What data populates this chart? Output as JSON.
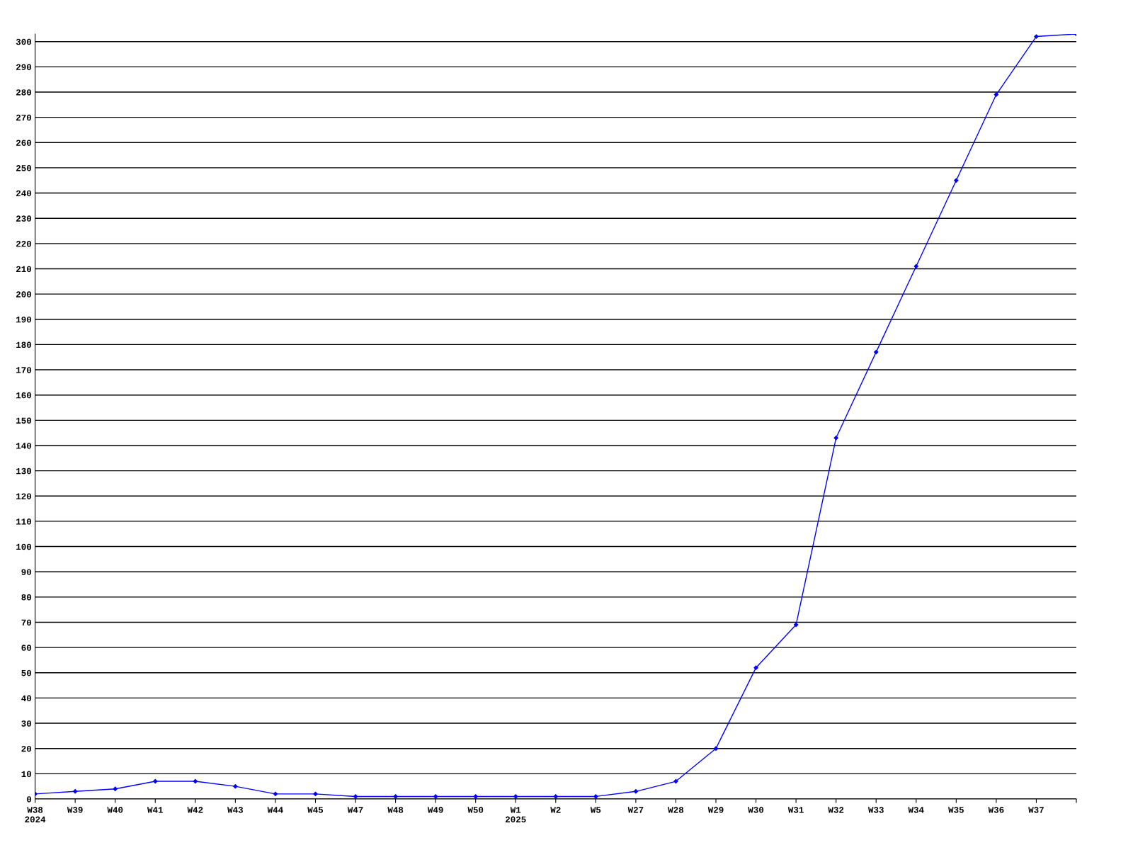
{
  "chart_data": {
    "type": "line",
    "categories": [
      "W38\n2024",
      "W39",
      "W40",
      "W41",
      "W42",
      "W43",
      "W44",
      "W45",
      "W47",
      "W48",
      "W49",
      "W50",
      "W1\n2025",
      "W2",
      "W5",
      "W27",
      "W28",
      "W29",
      "W30",
      "W31",
      "W32",
      "W33",
      "W34",
      "W35",
      "W36",
      "W37",
      null
    ],
    "series": [
      {
        "color": "#0000ff",
        "values": [
          2,
          3,
          4,
          7,
          7,
          5,
          2,
          2,
          1,
          1,
          1,
          1,
          1,
          1,
          1,
          3,
          7,
          20,
          52,
          69,
          143,
          177,
          211,
          245,
          279,
          302,
          303
        ]
      }
    ],
    "ylim": [
      0,
      303
    ],
    "yticks": [
      0,
      10,
      20,
      30,
      40,
      50,
      60,
      70,
      80,
      90,
      100,
      110,
      120,
      130,
      140,
      150,
      160,
      170,
      180,
      190,
      200,
      210,
      220,
      230,
      240,
      250,
      260,
      270,
      280,
      290,
      300
    ],
    "grid": "y",
    "marker": "diamond",
    "line_style": "solid",
    "legend": false
  }
}
